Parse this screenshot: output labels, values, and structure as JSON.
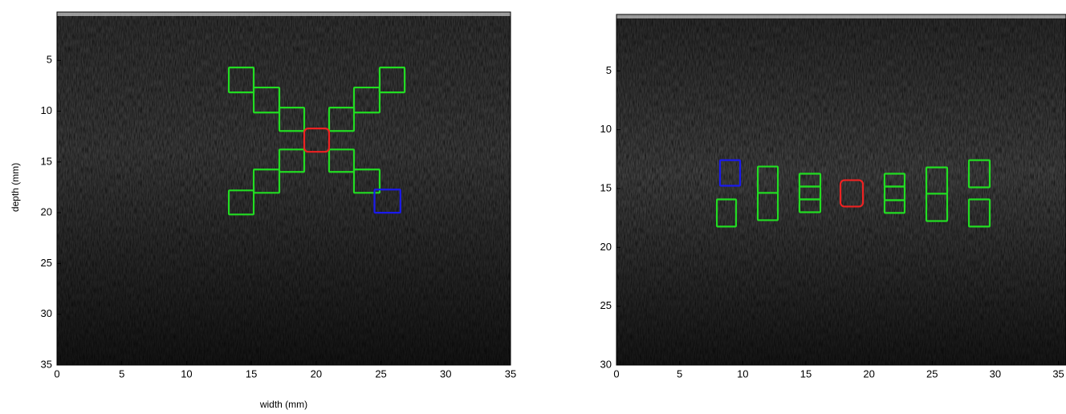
{
  "chart_data": [
    {
      "type": "image",
      "x_label": "width (mm)",
      "y_label": "depth (mm)",
      "xlim": [
        0,
        35
      ],
      "ylim": [
        0,
        35
      ],
      "xticks": [
        0,
        5,
        10,
        15,
        20,
        25,
        30,
        35
      ],
      "yticks": [
        5,
        10,
        15,
        20,
        25,
        30,
        35
      ],
      "boxes": [
        {
          "x": 13.26,
          "y": 5.7,
          "w": 1.92,
          "h": 2.45,
          "color": "#22dd22"
        },
        {
          "x": 15.18,
          "y": 7.67,
          "w": 1.98,
          "h": 2.46,
          "color": "#22dd22"
        },
        {
          "x": 17.16,
          "y": 9.65,
          "w": 1.92,
          "h": 2.3,
          "color": "#22dd22"
        },
        {
          "x": 21.0,
          "y": 9.65,
          "w": 1.92,
          "h": 2.3,
          "color": "#22dd22"
        },
        {
          "x": 22.92,
          "y": 7.67,
          "w": 1.98,
          "h": 2.46,
          "color": "#22dd22"
        },
        {
          "x": 24.9,
          "y": 5.7,
          "w": 1.93,
          "h": 2.45,
          "color": "#22dd22"
        },
        {
          "x": 17.16,
          "y": 13.77,
          "w": 1.92,
          "h": 2.21,
          "color": "#22dd22"
        },
        {
          "x": 15.18,
          "y": 15.74,
          "w": 1.98,
          "h": 2.3,
          "color": "#22dd22"
        },
        {
          "x": 13.26,
          "y": 17.8,
          "w": 1.92,
          "h": 2.37,
          "color": "#22dd22"
        },
        {
          "x": 21.0,
          "y": 13.77,
          "w": 1.92,
          "h": 2.21,
          "color": "#22dd22"
        },
        {
          "x": 22.92,
          "y": 15.74,
          "w": 1.98,
          "h": 2.3,
          "color": "#22dd22"
        },
        {
          "x": 24.5,
          "y": 17.72,
          "w": 2.0,
          "h": 2.28,
          "color": "#1a1aee"
        },
        {
          "x": 19.08,
          "y": 11.7,
          "w": 1.92,
          "h": 2.3,
          "color": "#ee2222"
        }
      ]
    },
    {
      "type": "image",
      "xlim": [
        0,
        35.6
      ],
      "ylim": [
        0,
        30
      ],
      "xticks": [
        0,
        5,
        10,
        15,
        20,
        25,
        30,
        35
      ],
      "yticks": [
        5,
        10,
        15,
        20,
        25,
        30
      ],
      "boxes": [
        {
          "x": 8.2,
          "y": 12.59,
          "w": 1.59,
          "h": 2.17,
          "color": "#1a1aee"
        },
        {
          "x": 7.95,
          "y": 15.92,
          "w": 1.52,
          "h": 2.31,
          "color": "#22dd22"
        },
        {
          "x": 11.19,
          "y": 13.13,
          "w": 1.59,
          "h": 2.24,
          "color": "#22dd22"
        },
        {
          "x": 11.19,
          "y": 15.37,
          "w": 1.59,
          "h": 2.32,
          "color": "#22dd22"
        },
        {
          "x": 14.49,
          "y": 13.74,
          "w": 1.66,
          "h": 1.09,
          "color": "#22dd22"
        },
        {
          "x": 14.49,
          "y": 14.83,
          "w": 1.66,
          "h": 1.09,
          "color": "#22dd22"
        },
        {
          "x": 14.49,
          "y": 15.92,
          "w": 1.66,
          "h": 1.09,
          "color": "#22dd22"
        },
        {
          "x": 17.74,
          "y": 14.29,
          "w": 1.78,
          "h": 2.24,
          "color": "#ee2222"
        },
        {
          "x": 21.23,
          "y": 13.74,
          "w": 1.59,
          "h": 1.09,
          "color": "#22dd22"
        },
        {
          "x": 21.23,
          "y": 14.83,
          "w": 1.59,
          "h": 1.16,
          "color": "#22dd22"
        },
        {
          "x": 21.23,
          "y": 15.99,
          "w": 1.59,
          "h": 1.08,
          "color": "#22dd22"
        },
        {
          "x": 24.54,
          "y": 13.2,
          "w": 1.65,
          "h": 2.24,
          "color": "#22dd22"
        },
        {
          "x": 24.54,
          "y": 15.44,
          "w": 1.65,
          "h": 2.32,
          "color": "#22dd22"
        },
        {
          "x": 27.91,
          "y": 12.59,
          "w": 1.65,
          "h": 2.31,
          "color": "#22dd22"
        },
        {
          "x": 27.91,
          "y": 15.92,
          "w": 1.65,
          "h": 2.31,
          "color": "#22dd22"
        }
      ]
    }
  ]
}
